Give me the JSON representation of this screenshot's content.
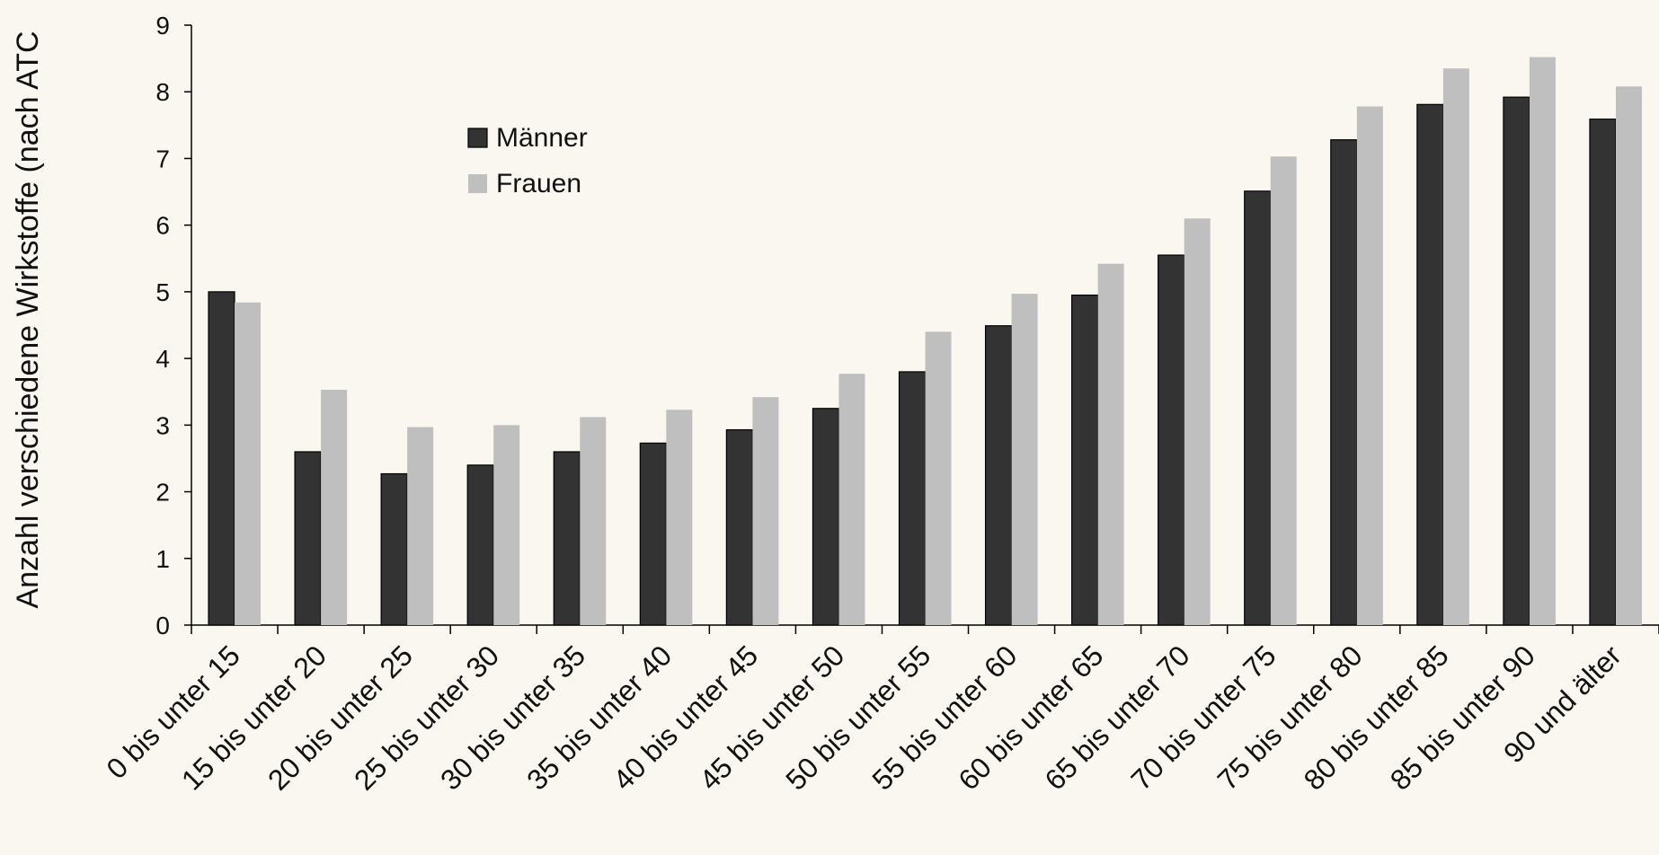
{
  "chart_data": {
    "type": "bar",
    "title": "",
    "xlabel": "",
    "ylabel": "Anzahl verschiedene Wirkstoffe (nach ATC",
    "ylim": [
      0,
      9
    ],
    "yticks": [
      0,
      1,
      2,
      3,
      4,
      5,
      6,
      7,
      8,
      9
    ],
    "grid": false,
    "legend_position": "top-left",
    "categories": [
      "0 bis unter 15",
      "15 bis unter 20",
      "20 bis unter 25",
      "25 bis unter 30",
      "30 bis unter 35",
      "35 bis unter 40",
      "40 bis unter 45",
      "45 bis unter 50",
      "50 bis unter 55",
      "55 bis unter 60",
      "60 bis unter 65",
      "65 bis unter 70",
      "70 bis unter 75",
      "75 bis unter 80",
      "80 bis unter 85",
      "85 bis unter 90",
      "90 und älter"
    ],
    "series": [
      {
        "name": "Männer",
        "color": "#333333",
        "values": [
          5.0,
          2.6,
          2.27,
          2.4,
          2.6,
          2.73,
          2.93,
          3.25,
          3.8,
          4.49,
          4.95,
          5.55,
          6.51,
          7.28,
          7.81,
          7.92,
          7.59
        ]
      },
      {
        "name": "Frauen",
        "color": "#bfbfbf",
        "values": [
          4.84,
          3.53,
          2.97,
          3.0,
          3.12,
          3.23,
          3.42,
          3.77,
          4.4,
          4.97,
          5.42,
          6.1,
          7.03,
          7.78,
          8.35,
          8.52,
          8.08
        ]
      }
    ]
  }
}
